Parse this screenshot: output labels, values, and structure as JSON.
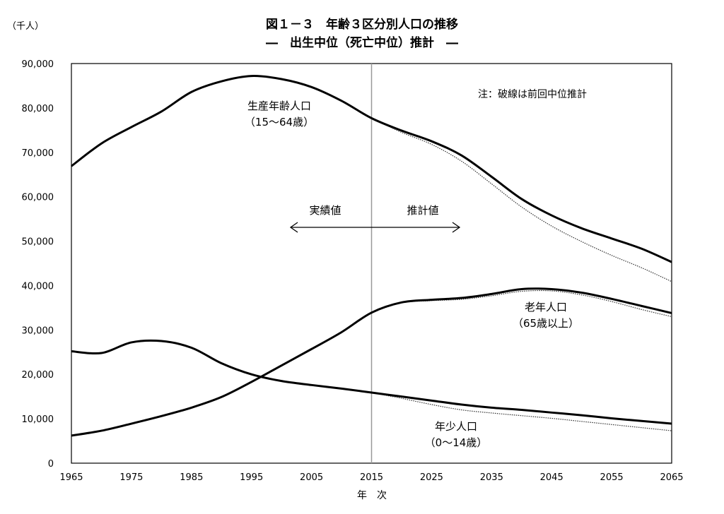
{
  "chart_data": {
    "type": "line",
    "title": "図１－３　年齢３区分別人口の推移",
    "subtitle": "―　出生中位（死亡中位）推計　―",
    "ylabel": "（千人）",
    "xlabel": "年　次",
    "xlim": [
      1965,
      2065
    ],
    "ylim": [
      0,
      90000
    ],
    "x_ticks": [
      "1965",
      "1975",
      "1985",
      "1995",
      "2005",
      "2015",
      "2025",
      "2035",
      "2045",
      "2055",
      "2065"
    ],
    "y_ticks": [
      "0",
      "10,000",
      "20,000",
      "30,000",
      "40,000",
      "50,000",
      "60,000",
      "70,000",
      "80,000",
      "90,000"
    ],
    "grid": false,
    "note": "注：破線は前回中位推計",
    "divider_year": 2015,
    "actual_label": "実績値",
    "projection_label": "推計値",
    "x": [
      1965,
      1970,
      1975,
      1980,
      1985,
      1990,
      1995,
      2000,
      2005,
      2010,
      2015,
      2020,
      2025,
      2030,
      2035,
      2040,
      2045,
      2050,
      2055,
      2060,
      2065
    ],
    "series": [
      {
        "name": "生産年齢人口",
        "name2": "（15～64歳）",
        "style": "solid",
        "values": [
          66900,
          72000,
          75700,
          79200,
          83600,
          86000,
          87200,
          86500,
          84700,
          81600,
          77700,
          74900,
          72500,
          69300,
          64500,
          59500,
          55800,
          52900,
          50600,
          48300,
          45300
        ]
      },
      {
        "name": "老年人口",
        "name2": "（65歳以上）",
        "style": "solid",
        "values": [
          6200,
          7300,
          8900,
          10600,
          12500,
          14900,
          18300,
          22000,
          25700,
          29500,
          33900,
          36200,
          36800,
          37200,
          38100,
          39200,
          39200,
          38400,
          37000,
          35400,
          33800
        ]
      },
      {
        "name": "年少人口",
        "name2": "（0～14歳）",
        "style": "solid",
        "values": [
          25200,
          24800,
          27200,
          27500,
          26000,
          22500,
          20000,
          18500,
          17600,
          16800,
          15900,
          15000,
          14100,
          13200,
          12500,
          12000,
          11400,
          10800,
          10100,
          9500,
          8900
        ]
      }
    ],
    "previous_projection": {
      "style": "dotted",
      "x": [
        2015,
        2020,
        2025,
        2030,
        2035,
        2040,
        2045,
        2050,
        2055,
        2060,
        2065
      ],
      "series": [
        {
          "values": [
            77700,
            74500,
            71800,
            68000,
            62900,
            57700,
            53400,
            49900,
            46800,
            44000,
            40900
          ]
        },
        {
          "values": [
            33900,
            36100,
            36600,
            36900,
            37700,
            38700,
            38800,
            37900,
            36400,
            34600,
            33000
          ]
        },
        {
          "values": [
            15900,
            14600,
            13200,
            12000,
            11300,
            10700,
            10100,
            9400,
            8700,
            8000,
            7300
          ]
        }
      ]
    }
  }
}
